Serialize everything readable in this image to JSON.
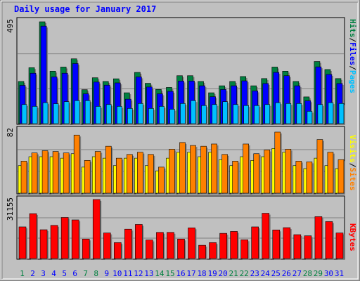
{
  "title": "Daily usage for January 2017",
  "colors": {
    "background": "#c0c0c0",
    "title": "#0000ff",
    "hits": "#008040",
    "files": "#0000ff",
    "pages": "#00c0ff",
    "visits": "#ffff00",
    "sites": "#ff8000",
    "kbytes": "#ff0000",
    "weekday_label": "#0000ff",
    "weekend_label": "#008040"
  },
  "chart_data": [
    {
      "type": "bar",
      "panel": "hits-files-pages",
      "categories": [
        "1",
        "2",
        "3",
        "4",
        "5",
        "6",
        "7",
        "8",
        "9",
        "10",
        "11",
        "12",
        "13",
        "14",
        "15",
        "16",
        "17",
        "18",
        "19",
        "20",
        "21",
        "22",
        "23",
        "24",
        "25",
        "26",
        "27",
        "28",
        "29",
        "30",
        "31"
      ],
      "ymax_label": "495",
      "ylim": [
        0,
        495
      ],
      "series": [
        {
          "name": "Hits",
          "values": [
            205,
            272,
            495,
            255,
            275,
            315,
            165,
            223,
            205,
            218,
            150,
            249,
            196,
            166,
            176,
            233,
            233,
            205,
            150,
            184,
            205,
            229,
            184,
            219,
            275,
            255,
            205,
            130,
            302,
            263,
            219
          ]
        },
        {
          "name": "Files",
          "values": [
            186,
            245,
            474,
            227,
            245,
            292,
            145,
            202,
            187,
            198,
            119,
            227,
            178,
            145,
            157,
            207,
            207,
            184,
            131,
            166,
            184,
            208,
            159,
            195,
            249,
            233,
            184,
            111,
            276,
            239,
            195
          ]
        },
        {
          "name": "Pages",
          "values": [
            93,
            84,
            102,
            97,
            107,
            112,
            112,
            84,
            93,
            84,
            74,
            98,
            74,
            84,
            70,
            98,
            112,
            88,
            93,
            107,
            93,
            88,
            88,
            93,
            102,
            98,
            98,
            60,
            93,
            102,
            98
          ]
        }
      ],
      "legend": [
        "Pages",
        "Files",
        "Hits"
      ]
    },
    {
      "type": "bar",
      "panel": "visits-sites",
      "categories": [
        "1",
        "2",
        "3",
        "4",
        "5",
        "6",
        "7",
        "8",
        "9",
        "10",
        "11",
        "12",
        "13",
        "14",
        "15",
        "16",
        "17",
        "18",
        "19",
        "20",
        "21",
        "22",
        "23",
        "24",
        "25",
        "26",
        "27",
        "28",
        "29",
        "30",
        "31"
      ],
      "ymax_label": "82",
      "ylim": [
        0,
        82
      ],
      "series": [
        {
          "name": "Visits",
          "values": [
            37,
            49,
            49,
            49,
            47,
            53,
            35,
            49,
            47,
            37,
            47,
            47,
            37,
            30,
            47,
            55,
            55,
            49,
            55,
            45,
            37,
            49,
            44,
            49,
            60,
            55,
            37,
            33,
            47,
            37,
            33
          ]
        },
        {
          "name": "Sites",
          "values": [
            43,
            54,
            57,
            56,
            54,
            78,
            44,
            56,
            63,
            47,
            52,
            55,
            52,
            35,
            59,
            68,
            64,
            63,
            66,
            52,
            43,
            66,
            53,
            58,
            82,
            59,
            43,
            42,
            72,
            55,
            45
          ]
        }
      ],
      "legend": [
        "Sites",
        "Visits"
      ]
    },
    {
      "type": "bar",
      "panel": "kbytes",
      "categories": [
        "1",
        "2",
        "3",
        "4",
        "5",
        "6",
        "7",
        "8",
        "9",
        "10",
        "11",
        "12",
        "13",
        "14",
        "15",
        "16",
        "17",
        "18",
        "19",
        "20",
        "21",
        "22",
        "23",
        "24",
        "25",
        "26",
        "27",
        "28",
        "29",
        "30",
        "31"
      ],
      "ymax_label": "31155",
      "ylim": [
        0,
        31155
      ],
      "series": [
        {
          "name": "KBytes",
          "values": [
            16700,
            23700,
            15200,
            17500,
            21700,
            20400,
            10300,
            31155,
            13500,
            8400,
            15500,
            18000,
            9800,
            13800,
            13800,
            10300,
            16200,
            7000,
            8400,
            13300,
            14300,
            9900,
            16700,
            23900,
            15100,
            16300,
            12600,
            12000,
            22100,
            19500,
            13500
          ]
        }
      ],
      "legend": [
        "KBytes"
      ]
    }
  ],
  "weekend_days": [
    1,
    7,
    8,
    14,
    15,
    21,
    22,
    28,
    29
  ]
}
